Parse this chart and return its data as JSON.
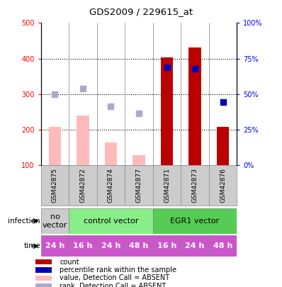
{
  "title": "GDS2009 / 229615_at",
  "samples": [
    "GSM42875",
    "GSM42872",
    "GSM42874",
    "GSM42877",
    "GSM42871",
    "GSM42873",
    "GSM42876"
  ],
  "bar_values": [
    207,
    240,
    163,
    128,
    403,
    430,
    207
  ],
  "bar_absent": [
    true,
    true,
    true,
    true,
    false,
    false,
    false
  ],
  "rank_values": [
    300,
    315,
    265,
    246,
    375,
    372,
    278
  ],
  "rank_absent": [
    true,
    true,
    true,
    true,
    false,
    false,
    false
  ],
  "ylim_left": [
    100,
    500
  ],
  "left_ticks": [
    100,
    200,
    300,
    400,
    500
  ],
  "right_ticks": [
    0,
    25,
    50,
    75,
    100
  ],
  "right_tick_labels": [
    "0%",
    "25%",
    "50%",
    "75%",
    "100%"
  ],
  "infection_groups": [
    {
      "label": "no\nvector",
      "span": [
        0,
        1
      ],
      "color": "#cccccc"
    },
    {
      "label": "control vector",
      "span": [
        1,
        4
      ],
      "color": "#88ee88"
    },
    {
      "label": "EGR1 vector",
      "span": [
        4,
        7
      ],
      "color": "#55cc55"
    }
  ],
  "time_labels": [
    "24 h",
    "16 h",
    "24 h",
    "48 h",
    "16 h",
    "24 h",
    "48 h"
  ],
  "time_color": "#cc55cc",
  "bar_color_present": "#bb0000",
  "bar_color_absent": "#ffbbbb",
  "rank_color_present": "#0000bb",
  "rank_color_absent": "#aaaacc",
  "dotted_gridlines": [
    200,
    300,
    400
  ],
  "legend_items": [
    {
      "color": "#bb0000",
      "label": "count"
    },
    {
      "color": "#0000bb",
      "label": "percentile rank within the sample"
    },
    {
      "color": "#ffbbbb",
      "label": "value, Detection Call = ABSENT"
    },
    {
      "color": "#aaaacc",
      "label": "rank, Detection Call = ABSENT"
    }
  ]
}
